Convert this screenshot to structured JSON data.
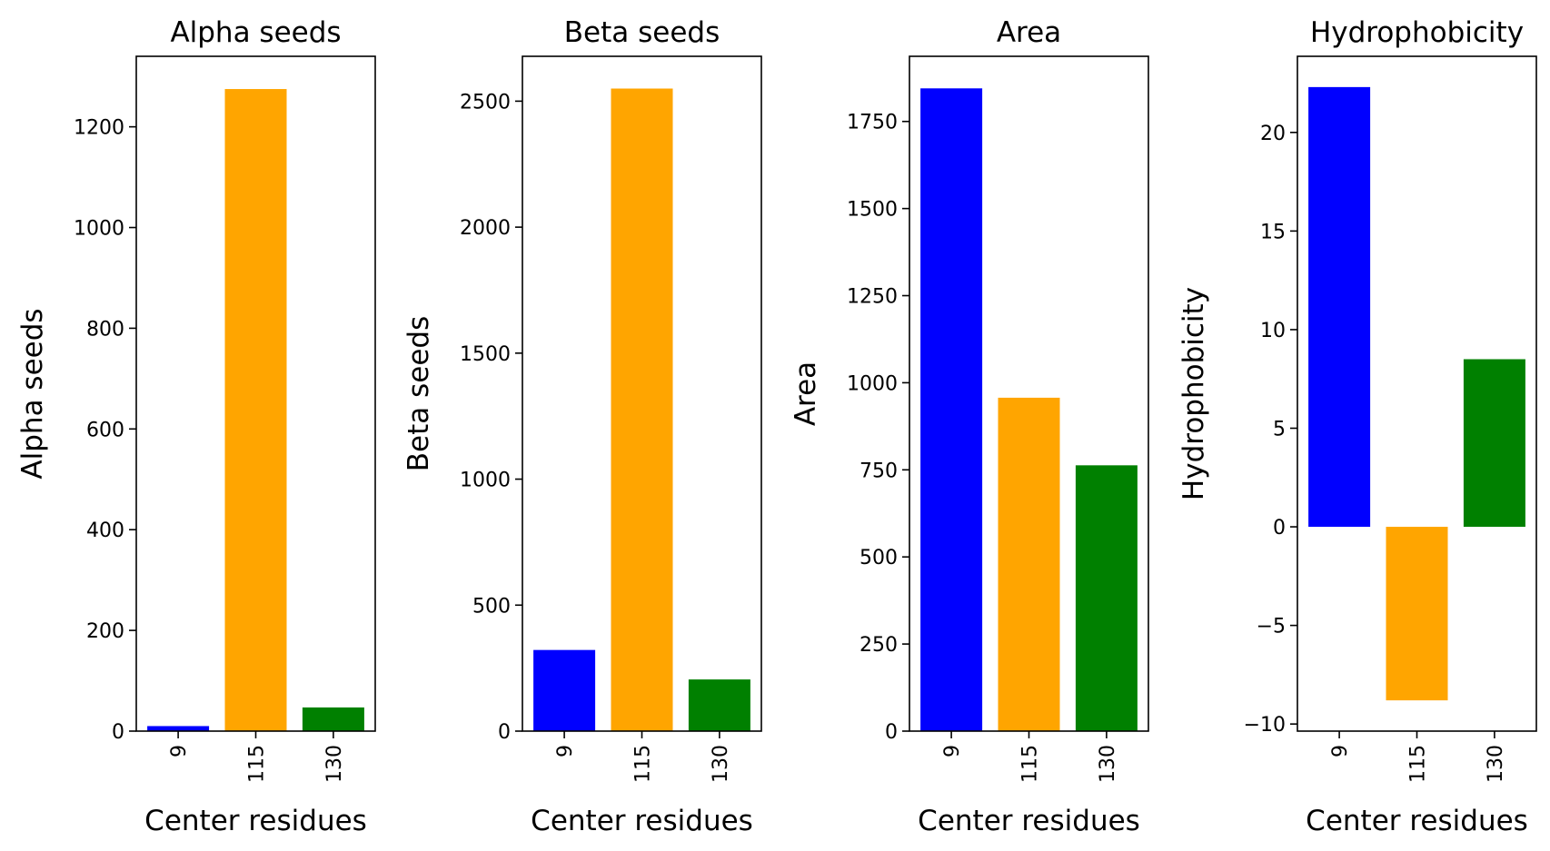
{
  "chart_data": [
    {
      "type": "bar",
      "title": "Alpha seeds",
      "xlabel": "Center residues",
      "ylabel": "Alpha seeds",
      "categories": [
        "9",
        "115",
        "130"
      ],
      "values": [
        10,
        1275,
        47
      ],
      "colors": [
        "#0000ff",
        "#ffa500",
        "#008000"
      ],
      "ylim": [
        0,
        1340
      ],
      "yticks": [
        0,
        200,
        400,
        600,
        800,
        1000,
        1200
      ],
      "ytick_labels": [
        "0",
        "200",
        "400",
        "600",
        "800",
        "1000",
        "1200"
      ],
      "grid": false,
      "legend": "none"
    },
    {
      "type": "bar",
      "title": "Beta seeds",
      "xlabel": "Center residues",
      "ylabel": "Beta seeds",
      "categories": [
        "9",
        "115",
        "130"
      ],
      "values": [
        322,
        2550,
        205
      ],
      "colors": [
        "#0000ff",
        "#ffa500",
        "#008000"
      ],
      "ylim": [
        0,
        2678
      ],
      "yticks": [
        0,
        500,
        1000,
        1500,
        2000,
        2500
      ],
      "ytick_labels": [
        "0",
        "500",
        "1000",
        "1500",
        "2000",
        "2500"
      ],
      "grid": false,
      "legend": "none"
    },
    {
      "type": "bar",
      "title": "Area",
      "xlabel": "Center residues",
      "ylabel": "Area",
      "categories": [
        "9",
        "115",
        "130"
      ],
      "values": [
        1845,
        957,
        763
      ],
      "colors": [
        "#0000ff",
        "#ffa500",
        "#008000"
      ],
      "ylim": [
        0,
        1937
      ],
      "yticks": [
        0,
        250,
        500,
        750,
        1000,
        1250,
        1500,
        1750
      ],
      "ytick_labels": [
        "0",
        "250",
        "500",
        "750",
        "1000",
        "1250",
        "1500",
        "1750"
      ],
      "grid": false,
      "legend": "none"
    },
    {
      "type": "bar",
      "title": "Hydrophobicity",
      "xlabel": "Center residues",
      "ylabel": "Hydrophobicity",
      "categories": [
        "9",
        "115",
        "130"
      ],
      "values": [
        22.3,
        -8.8,
        8.5
      ],
      "colors": [
        "#0000ff",
        "#ffa500",
        "#008000"
      ],
      "ylim": [
        -10.36,
        23.86
      ],
      "yticks": [
        -10,
        -5,
        0,
        5,
        10,
        15,
        20
      ],
      "ytick_labels": [
        "−10",
        "−5",
        "0",
        "5",
        "10",
        "15",
        "20"
      ],
      "grid": false,
      "legend": "none"
    }
  ]
}
